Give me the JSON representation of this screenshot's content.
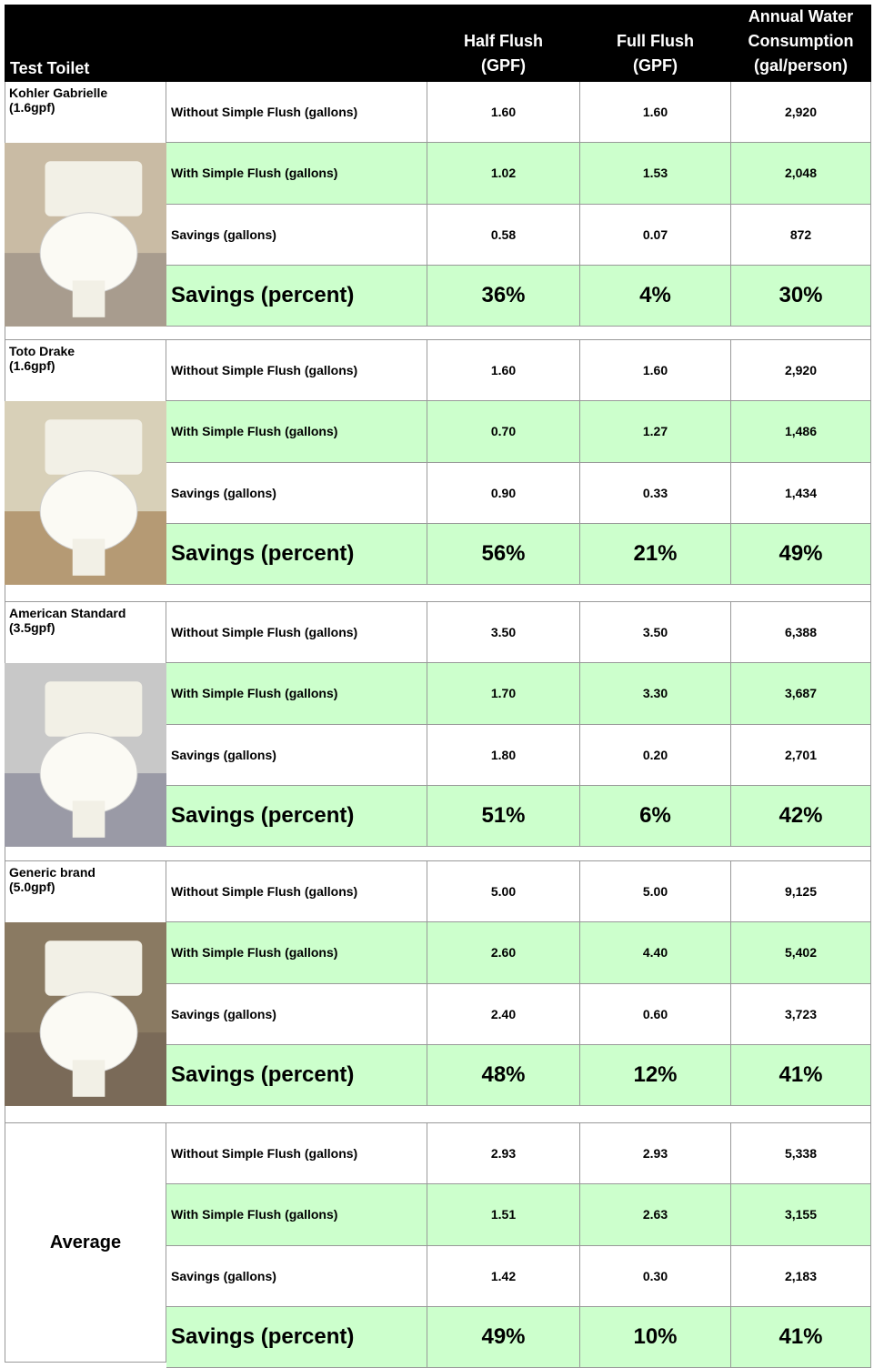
{
  "header": {
    "title": "Test Toilet",
    "columns": [
      [
        "Half Flush",
        "(GPF)"
      ],
      [
        "Full Flush",
        "(GPF)"
      ],
      [
        "Annual Water",
        "Consumption",
        "(gal/person)"
      ]
    ]
  },
  "groups": [
    {
      "name": "Kohler Gabrielle",
      "spec": "(1.6gpf)",
      "rows": [
        {
          "label": "Without Simple Flush (gallons)",
          "values": [
            "1.60",
            "1.60",
            "2,920"
          ]
        },
        {
          "label": "With Simple Flush (gallons)",
          "values": [
            "1.02",
            "1.53",
            "2,048"
          ]
        },
        {
          "label": "Savings (gallons)",
          "values": [
            "0.58",
            "0.07",
            "872"
          ]
        },
        {
          "label": "Savings (percent)",
          "values": [
            "36%",
            "4%",
            "30%"
          ]
        }
      ]
    },
    {
      "name": "Toto Drake",
      "spec": "(1.6gpf)",
      "rows": [
        {
          "label": "Without Simple Flush (gallons)",
          "values": [
            "1.60",
            "1.60",
            "2,920"
          ]
        },
        {
          "label": "With Simple Flush (gallons)",
          "values": [
            "0.70",
            "1.27",
            "1,486"
          ]
        },
        {
          "label": "Savings (gallons)",
          "values": [
            "0.90",
            "0.33",
            "1,434"
          ]
        },
        {
          "label": "Savings (percent)",
          "values": [
            "56%",
            "21%",
            "49%"
          ]
        }
      ]
    },
    {
      "name": "American Standard",
      "spec": "(3.5gpf)",
      "rows": [
        {
          "label": "Without Simple Flush (gallons)",
          "values": [
            "3.50",
            "3.50",
            "6,388"
          ]
        },
        {
          "label": "With Simple Flush (gallons)",
          "values": [
            "1.70",
            "3.30",
            "3,687"
          ]
        },
        {
          "label": "Savings (gallons)",
          "values": [
            "1.80",
            "0.20",
            "2,701"
          ]
        },
        {
          "label": "Savings (percent)",
          "values": [
            "51%",
            "6%",
            "42%"
          ]
        }
      ]
    },
    {
      "name": "Generic brand",
      "spec": "(5.0gpf)",
      "rows": [
        {
          "label": "Without Simple Flush (gallons)",
          "values": [
            "5.00",
            "5.00",
            "9,125"
          ]
        },
        {
          "label": "With Simple Flush (gallons)",
          "values": [
            "2.60",
            "4.40",
            "5,402"
          ]
        },
        {
          "label": "Savings (gallons)",
          "values": [
            "2.40",
            "0.60",
            "3,723"
          ]
        },
        {
          "label": "Savings (percent)",
          "values": [
            "48%",
            "12%",
            "41%"
          ]
        }
      ]
    },
    {
      "name": "Average",
      "rows": [
        {
          "label": "Without Simple Flush (gallons)",
          "values": [
            "2.93",
            "2.93",
            "5,338"
          ]
        },
        {
          "label": "With Simple Flush (gallons)",
          "values": [
            "1.51",
            "2.63",
            "3,155"
          ]
        },
        {
          "label": "Savings (gallons)",
          "values": [
            "1.42",
            "0.30",
            "2,183"
          ]
        },
        {
          "label": "Savings (percent)",
          "values": [
            "49%",
            "10%",
            "41%"
          ]
        }
      ]
    }
  ]
}
